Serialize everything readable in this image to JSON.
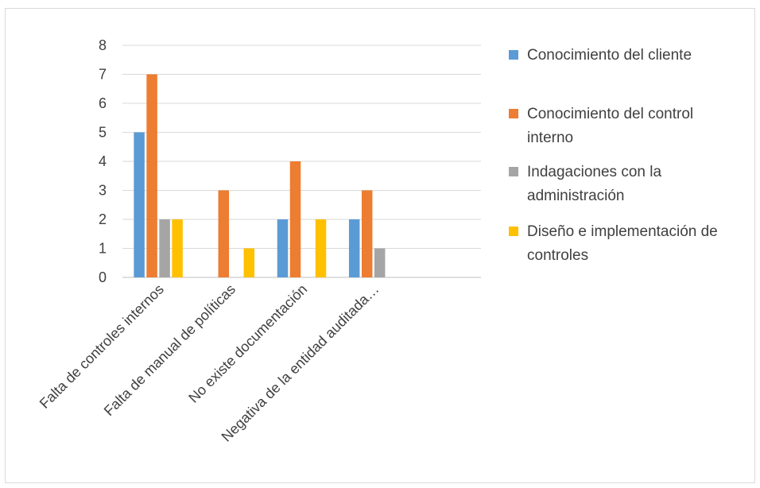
{
  "chart_data": {
    "type": "bar",
    "categories": [
      "Falta de controles internos",
      "Falta de manual de políticas",
      "No existe documentación",
      "Negativa de la entidad auditada…",
      ""
    ],
    "series": [
      {
        "name": "Conocimiento del cliente",
        "color": "#5b9bd5",
        "values": [
          5,
          0,
          2,
          2,
          0
        ]
      },
      {
        "name": "Conocimiento del control interno",
        "color": "#ed7d31",
        "values": [
          7,
          3,
          4,
          3,
          0
        ]
      },
      {
        "name": "Indagaciones con la administración",
        "color": "#a5a5a5",
        "values": [
          2,
          0,
          0,
          1,
          0
        ]
      },
      {
        "name": "Diseño e implementación de controles",
        "color": "#ffc000",
        "values": [
          2,
          1,
          2,
          0,
          0
        ]
      }
    ],
    "yticks": [
      0,
      1,
      2,
      3,
      4,
      5,
      6,
      7,
      8
    ],
    "ylim": [
      0,
      8
    ],
    "grid": true,
    "legend_position": "right",
    "legend_lines": [
      [
        "Conocimiento del cliente"
      ],
      [
        "Conocimiento del control",
        "interno"
      ],
      [
        "Indagaciones con la",
        "administración"
      ],
      [
        "Diseño e implementación de",
        "controles"
      ]
    ],
    "title": "",
    "xlabel": "",
    "ylabel": ""
  }
}
